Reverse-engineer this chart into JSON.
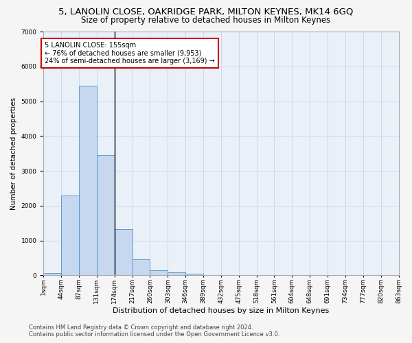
{
  "title": "5, LANOLIN CLOSE, OAKRIDGE PARK, MILTON KEYNES, MK14 6GQ",
  "subtitle": "Size of property relative to detached houses in Milton Keynes",
  "xlabel": "Distribution of detached houses by size in Milton Keynes",
  "ylabel": "Number of detached properties",
  "footer_line1": "Contains HM Land Registry data © Crown copyright and database right 2024.",
  "footer_line2": "Contains public sector information licensed under the Open Government Licence v3.0.",
  "bar_values": [
    75,
    2300,
    5450,
    3450,
    1320,
    470,
    155,
    80,
    50,
    10,
    3,
    2,
    1,
    0,
    0,
    0,
    0,
    0,
    0,
    0
  ],
  "bar_labels": [
    "1sqm",
    "44sqm",
    "87sqm",
    "131sqm",
    "174sqm",
    "217sqm",
    "260sqm",
    "303sqm",
    "346sqm",
    "389sqm",
    "432sqm",
    "475sqm",
    "518sqm",
    "561sqm",
    "604sqm",
    "648sqm",
    "691sqm",
    "734sqm",
    "777sqm",
    "820sqm",
    "863sqm"
  ],
  "bar_color": "#c5d8f0",
  "bar_edge_color": "#4a90c4",
  "annotation_text_line1": "5 LANOLIN CLOSE: 155sqm",
  "annotation_text_line2": "← 76% of detached houses are smaller (9,953)",
  "annotation_text_line3": "24% of semi-detached houses are larger (3,169) →",
  "annotation_box_color": "#ffffff",
  "annotation_box_edge_color": "#cc0000",
  "ylim": [
    0,
    7000
  ],
  "yticks": [
    0,
    1000,
    2000,
    3000,
    4000,
    5000,
    6000,
    7000
  ],
  "grid_color": "#d0d8e8",
  "bg_color": "#eaf0f8",
  "fig_bg_color": "#f5f5f5",
  "title_fontsize": 9.5,
  "subtitle_fontsize": 8.5,
  "xlabel_fontsize": 8,
  "ylabel_fontsize": 7.5,
  "tick_fontsize": 6.5,
  "annotation_fontsize": 7,
  "footer_fontsize": 6,
  "property_line_x": 3.5
}
